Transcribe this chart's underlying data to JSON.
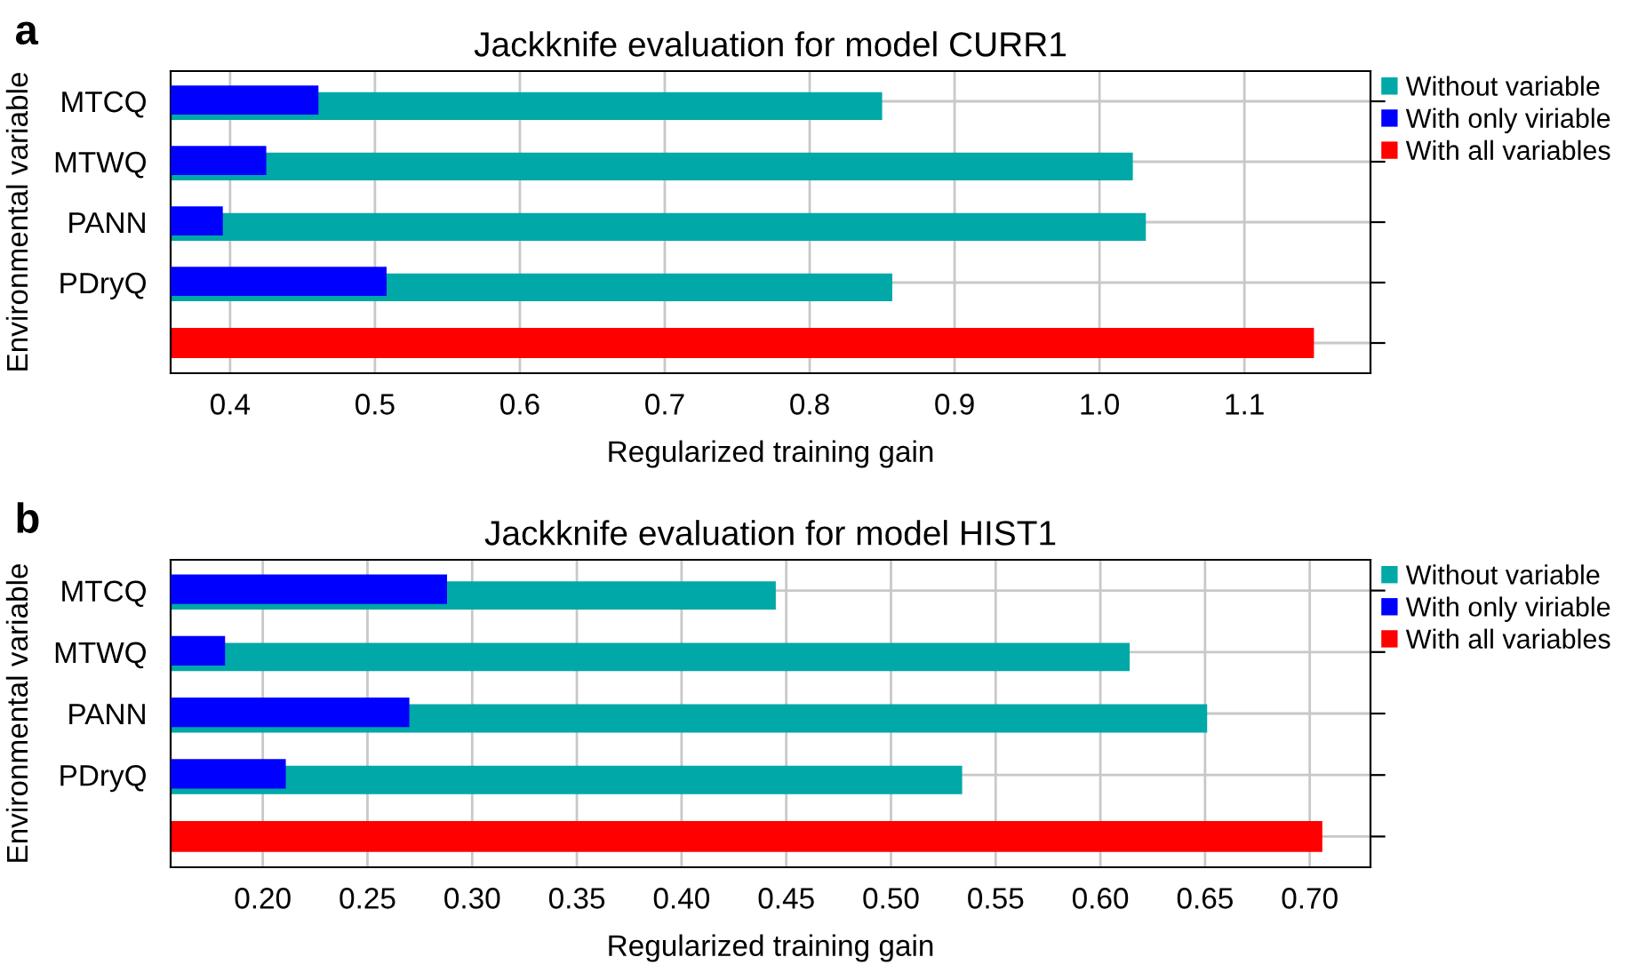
{
  "chart_data": [
    {
      "type": "bar",
      "orientation": "horizontal",
      "title": "Jackknife evaluation for model CURR1",
      "xlabel": "Regularized training gain",
      "ylabel": "Environmental variable",
      "annotations": [
        "a"
      ],
      "categories": [
        "MTCQ",
        "MTWQ",
        "PANN",
        "PDryQ",
        null
      ],
      "series": [
        {
          "name": "Without variable",
          "color": "#00a8a8",
          "values": [
            0.85,
            1.023,
            1.032,
            0.857,
            null
          ]
        },
        {
          "name": "With only viriable",
          "color": "#0000ff",
          "values": [
            0.461,
            0.425,
            0.395,
            0.508,
            null
          ]
        },
        {
          "name": "With all variables",
          "color": "#ff0000",
          "values": [
            null,
            null,
            null,
            null,
            1.148
          ]
        }
      ],
      "xlim": [
        0.359,
        1.187
      ],
      "xticks": [
        0.4,
        0.5,
        0.6,
        0.7,
        0.8,
        0.9,
        {
          "value": 1.0,
          "label": "1.0"
        },
        1.1
      ],
      "grid": true,
      "legend": "top right"
    },
    {
      "type": "bar",
      "orientation": "horizontal",
      "title": "Jackknife evaluation for model HIST1",
      "xlabel": "Regularized training gain",
      "ylabel": "Environmental variable",
      "annotations": [
        "b"
      ],
      "categories": [
        "MTCQ",
        "MTWQ",
        "PANN",
        "PDryQ",
        null
      ],
      "series": [
        {
          "name": "Without variable",
          "color": "#00a8a8",
          "values": [
            0.445,
            0.614,
            0.651,
            0.534,
            null
          ]
        },
        {
          "name": "With only viriable",
          "color": "#0000ff",
          "values": [
            0.288,
            0.182,
            0.27,
            0.211,
            null
          ]
        },
        {
          "name": "With all variables",
          "color": "#ff0000",
          "values": [
            null,
            null,
            null,
            null,
            0.706
          ]
        }
      ],
      "xlim": [
        0.156,
        0.729
      ],
      "xticks": [
        {
          "value": 0.2,
          "label": "0.20"
        },
        0.25,
        {
          "value": 0.3,
          "label": "0.30"
        },
        0.35,
        {
          "value": 0.4,
          "label": "0.40"
        },
        0.45,
        {
          "value": 0.5,
          "label": "0.50"
        },
        0.55,
        {
          "value": 0.6,
          "label": "0.60"
        },
        0.65,
        {
          "value": 0.7,
          "label": "0.70"
        }
      ],
      "grid": true,
      "legend": "top right"
    }
  ]
}
